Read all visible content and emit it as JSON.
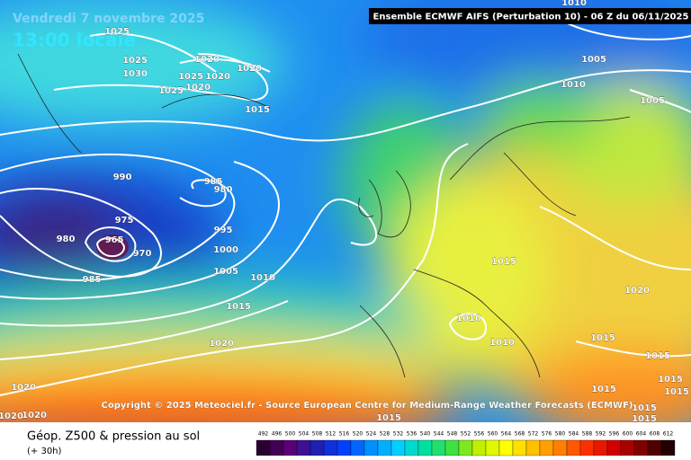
{
  "header": {
    "date": "Vendredi 7 novembre 2025",
    "time": "13:00 locale",
    "model": "Ensemble ECMWF AIFS  (Perturbation 10)  - 06 Z du 06/11/2025"
  },
  "isobar_labels": [
    "1025",
    "1025",
    "1030",
    "1020",
    "1020",
    "1025",
    "1020",
    "1025",
    "1020",
    "1015",
    "1010",
    "1005",
    "1010",
    "1005",
    "990",
    "985",
    "980",
    "975",
    "980",
    "965",
    "970",
    "985",
    "995",
    "1000",
    "1005",
    "1010",
    "1015",
    "1015",
    "1020",
    "1010",
    "1010",
    "1020",
    "1015",
    "1015",
    "1020",
    "1020",
    "1020",
    "1015",
    "1015",
    "1015",
    "1015",
    "1015",
    "1015"
  ],
  "copyright": "Copyright © 2025 Meteociel.fr - Source European Centre for Medium-Range Weather Forecasts (ECMWF)",
  "footer": {
    "title": "Géop. Z500 & pression au sol",
    "subtitle": "(+ 30h)"
  },
  "scale": [
    "492",
    "496",
    "500",
    "504",
    "508",
    "512",
    "516",
    "520",
    "524",
    "528",
    "532",
    "536",
    "540",
    "544",
    "548",
    "552",
    "556",
    "560",
    "564",
    "568",
    "572",
    "576",
    "580",
    "584",
    "588",
    "592",
    "596",
    "600",
    "604",
    "608",
    "612"
  ]
}
